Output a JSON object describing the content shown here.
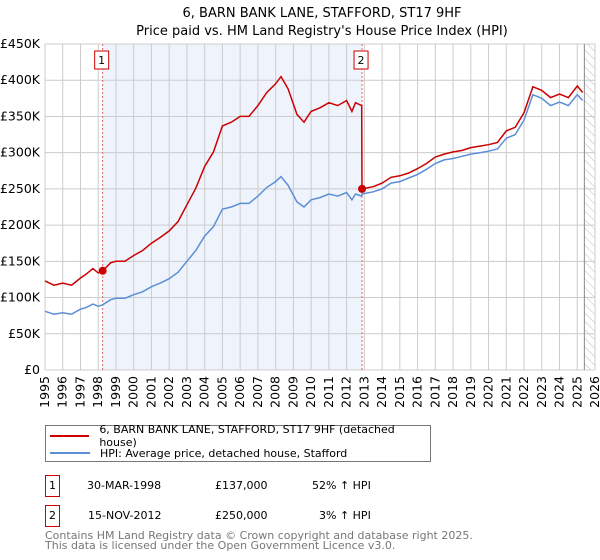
{
  "chart_data": {
    "type": "line",
    "title": "6, BARN BANK LANE, STAFFORD, ST17 9HF",
    "subtitle": "Price paid vs. HM Land Registry's House Price Index (HPI)",
    "xlim": [
      1995,
      2026
    ],
    "ylim": [
      0,
      450000
    ],
    "x_ticks": [
      "1995",
      "1996",
      "1997",
      "1998",
      "1999",
      "2000",
      "2001",
      "2002",
      "2003",
      "2004",
      "2005",
      "2006",
      "2007",
      "2008",
      "2009",
      "2010",
      "2011",
      "2012",
      "2013",
      "2014",
      "2015",
      "2016",
      "2017",
      "2018",
      "2019",
      "2020",
      "2021",
      "2022",
      "2023",
      "2024",
      "2025",
      "2026"
    ],
    "y_ticks": [
      {
        "v": 0,
        "label": "£0"
      },
      {
        "v": 50000,
        "label": "£50K"
      },
      {
        "v": 100000,
        "label": "£100K"
      },
      {
        "v": 150000,
        "label": "£150K"
      },
      {
        "v": 200000,
        "label": "£200K"
      },
      {
        "v": 250000,
        "label": "£250K"
      },
      {
        "v": 300000,
        "label": "£300K"
      },
      {
        "v": 350000,
        "label": "£350K"
      },
      {
        "v": 400000,
        "label": "£400K"
      },
      {
        "v": 450000,
        "label": "£450K"
      }
    ],
    "grid": true,
    "shaded_period": [
      1998.25,
      2012.87
    ],
    "forecast_hatch_from": 2025.4,
    "series": [
      {
        "name": "6, BARN BANK LANE, STAFFORD, ST17 9HF (detached house)",
        "color": "#cc0000",
        "x": [
          1995,
          1995.5,
          1996,
          1996.5,
          1997,
          1997.3,
          1997.7,
          1998,
          1998.25,
          1998.7,
          1999,
          1999.5,
          2000,
          2000.5,
          2001,
          2001.5,
          2002,
          2002.5,
          2003,
          2003.5,
          2004,
          2004.5,
          2005,
          2005.5,
          2006,
          2006.5,
          2007,
          2007.5,
          2008,
          2008.3,
          2008.7,
          2009.2,
          2009.6,
          2010,
          2010.5,
          2011,
          2011.5,
          2012,
          2012.3,
          2012.5,
          2012.85,
          2012.87,
          2013.5,
          2014,
          2014.5,
          2015,
          2015.5,
          2016,
          2016.5,
          2017,
          2017.5,
          2018,
          2018.5,
          2019,
          2019.5,
          2020,
          2020.5,
          2021,
          2021.5,
          2022,
          2022.5,
          2023,
          2023.5,
          2024,
          2024.5,
          2025,
          2025.3
        ],
        "y": [
          123000,
          117000,
          120000,
          117000,
          127000,
          132000,
          140000,
          134000,
          137000,
          148000,
          150000,
          150000,
          158000,
          165000,
          175000,
          183000,
          192000,
          205000,
          228000,
          251000,
          281000,
          301000,
          337000,
          342000,
          350000,
          350000,
          365000,
          383000,
          395000,
          405000,
          388000,
          353000,
          342000,
          357000,
          362000,
          369000,
          365000,
          372000,
          357000,
          369000,
          365000,
          250000,
          253000,
          258000,
          266000,
          268000,
          272000,
          278000,
          285000,
          294000,
          298000,
          301000,
          303000,
          307000,
          309000,
          311000,
          314000,
          330000,
          335000,
          355000,
          391000,
          386000,
          376000,
          381000,
          376000,
          392000,
          383000
        ]
      },
      {
        "name": "HPI: Average price, detached house, Stafford",
        "color": "#5b8fd6",
        "x": [
          1995,
          1995.5,
          1996,
          1996.5,
          1997,
          1997.3,
          1997.7,
          1998,
          1998.25,
          1998.7,
          1999,
          1999.5,
          2000,
          2000.5,
          2001,
          2001.5,
          2002,
          2002.5,
          2003,
          2003.5,
          2004,
          2004.5,
          2005,
          2005.5,
          2006,
          2006.5,
          2007,
          2007.5,
          2008,
          2008.3,
          2008.7,
          2009.2,
          2009.6,
          2010,
          2010.5,
          2011,
          2011.5,
          2012,
          2012.3,
          2012.5,
          2012.85,
          2012.87,
          2013.5,
          2014,
          2014.5,
          2015,
          2015.5,
          2016,
          2016.5,
          2017,
          2017.5,
          2018,
          2018.5,
          2019,
          2019.5,
          2020,
          2020.5,
          2021,
          2021.5,
          2022,
          2022.5,
          2023,
          2023.5,
          2024,
          2024.5,
          2025,
          2025.3
        ],
        "y": [
          81000,
          77000,
          79000,
          77000,
          84000,
          86000,
          91000,
          88000,
          90000,
          97000,
          99000,
          99000,
          104000,
          108000,
          115000,
          120000,
          126000,
          135000,
          150000,
          165000,
          185000,
          198000,
          222000,
          225000,
          230000,
          230000,
          240000,
          252000,
          260000,
          267000,
          255000,
          232000,
          225000,
          235000,
          238000,
          243000,
          240000,
          245000,
          235000,
          243000,
          240000,
          243000,
          246000,
          250000,
          258000,
          260000,
          265000,
          270000,
          277000,
          285000,
          290000,
          292000,
          295000,
          298000,
          300000,
          302000,
          305000,
          320000,
          325000,
          345000,
          380000,
          375000,
          365000,
          370000,
          365000,
          380000,
          372000
        ]
      }
    ],
    "markers": [
      {
        "label": "1",
        "x": 1998.25,
        "y": 137000
      },
      {
        "label": "2",
        "x": 2012.87,
        "y": 250000
      }
    ]
  },
  "legend": {
    "property": "6, BARN BANK LANE, STAFFORD, ST17 9HF (detached house)",
    "hpi": "HPI: Average price, detached house, Stafford"
  },
  "sales": [
    {
      "num": "1",
      "date": "30-MAR-1998",
      "price": "£137,000",
      "hpi": "52% ↑ HPI"
    },
    {
      "num": "2",
      "date": "15-NOV-2012",
      "price": "£250,000",
      "hpi": "3% ↑ HPI"
    }
  ],
  "footer": {
    "line1": "Contains HM Land Registry data © Crown copyright and database right 2025.",
    "line2": "This data is licensed under the Open Government Licence v3.0."
  }
}
